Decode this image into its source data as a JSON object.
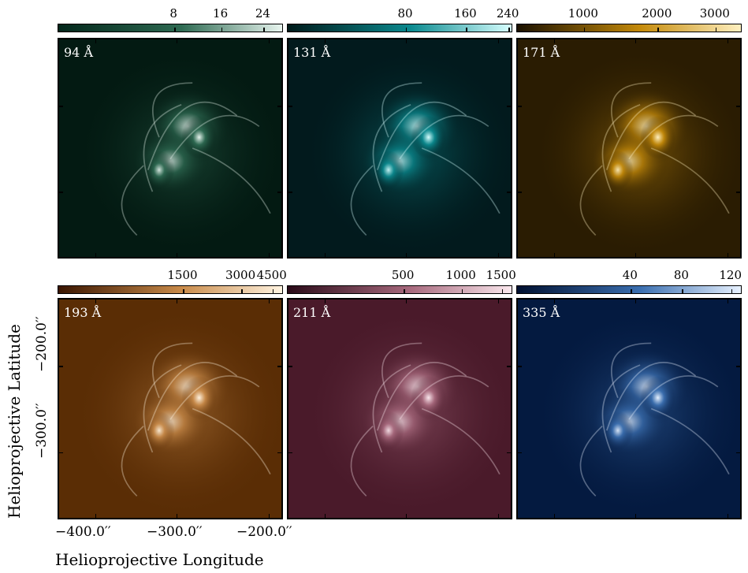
{
  "panels": [
    {
      "label": "94 Å",
      "ticks": [
        "8",
        "16",
        "24"
      ],
      "dark": "#031a12",
      "mid": "#2e6a52",
      "bright": "#e8f5ef",
      "cbar_start": "#02261a"
    },
    {
      "label": "131 Å",
      "ticks": [
        "80",
        "160",
        "240"
      ],
      "dark": "#021a1d",
      "mid": "#0b8a8f",
      "bright": "#d8ffff",
      "cbar_start": "#001a1a"
    },
    {
      "label": "171 Å",
      "ticks": [
        "1000",
        "2000",
        "3000"
      ],
      "dark": "#2a1c02",
      "mid": "#c48a0a",
      "bright": "#fff0c0",
      "cbar_start": "#1a1000"
    },
    {
      "label": "193 Å",
      "ticks": [
        "1500",
        "3000",
        "4500"
      ],
      "dark": "#5a2d05",
      "mid": "#c98b4a",
      "bright": "#fff3e0",
      "cbar_start": "#3a1500"
    },
    {
      "label": "211 Å",
      "ticks": [
        "500",
        "1000",
        "1500"
      ],
      "dark": "#4a1a2a",
      "mid": "#a86a7e",
      "bright": "#fbe8ee",
      "cbar_start": "#2a0a18"
    },
    {
      "label": "335 Å",
      "ticks": [
        "40",
        "80",
        "120"
      ],
      "dark": "#041a40",
      "mid": "#3b6fb0",
      "bright": "#e8f2ff",
      "cbar_start": "#001030"
    }
  ],
  "axes": {
    "x_label": "Helioprojective Longitude",
    "y_label": "Helioprojective Latitude",
    "x_ticks": [
      "−400.0′′",
      "−300.0′′",
      "−200.0′′"
    ],
    "y_ticks": [
      "−200.0′′",
      "−300.0′′"
    ]
  }
}
